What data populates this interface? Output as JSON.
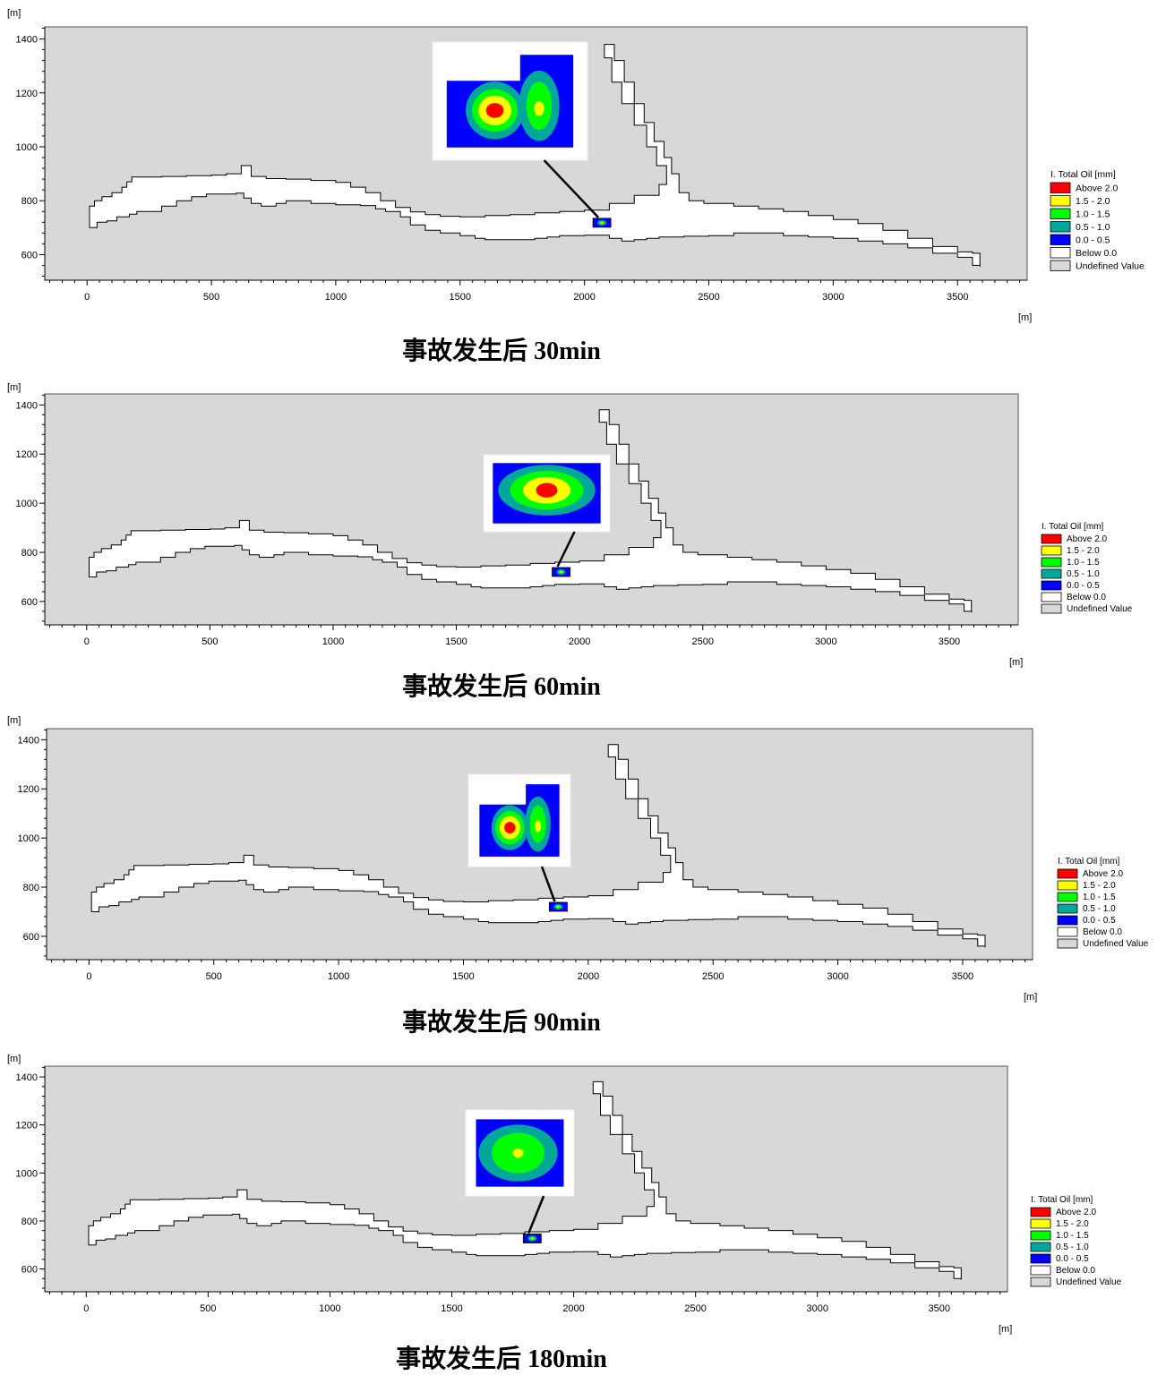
{
  "unit_label": "[m]",
  "legend": {
    "title": "I. Total Oil [mm]",
    "items": [
      {
        "label": "Above 2.0",
        "color": "#ff0000"
      },
      {
        "label": "1.5 - 2.0",
        "color": "#ffff00"
      },
      {
        "label": "1.0 - 1.5",
        "color": "#00ff00"
      },
      {
        "label": "0.5 - 1.0",
        "color": "#00a89a"
      },
      {
        "label": "0.0 - 0.5",
        "color": "#0000ff"
      },
      {
        "label": "Below 0.0",
        "color": "#ffffff"
      },
      {
        "label": "Undefined Value",
        "color": "#d8d8d8"
      }
    ]
  },
  "colors": {
    "land": "#d8d8d8",
    "water": "#ffffff",
    "outline": "#000000"
  },
  "axes": {
    "x_ticks": [
      0,
      500,
      1000,
      1500,
      2000,
      2500,
      3000,
      3500
    ],
    "y_ticks": [
      600,
      800,
      1000,
      1200,
      1400
    ],
    "x_range": [
      -170,
      3780
    ],
    "y_range": [
      505,
      1445
    ]
  },
  "panels": [
    {
      "caption": "事故发生后 30min",
      "spill_center": [
        2070,
        718
      ],
      "inset_pattern": "two-lobe"
    },
    {
      "caption": "事故发生后 60min",
      "spill_center": [
        1925,
        720
      ],
      "inset_pattern": "single"
    },
    {
      "caption": "事故发生后 90min",
      "spill_center": [
        1880,
        720
      ],
      "inset_pattern": "two-lobe"
    },
    {
      "caption": "事故发生后 180min",
      "spill_center": [
        1830,
        727
      ],
      "inset_pattern": "single-spread"
    }
  ]
}
